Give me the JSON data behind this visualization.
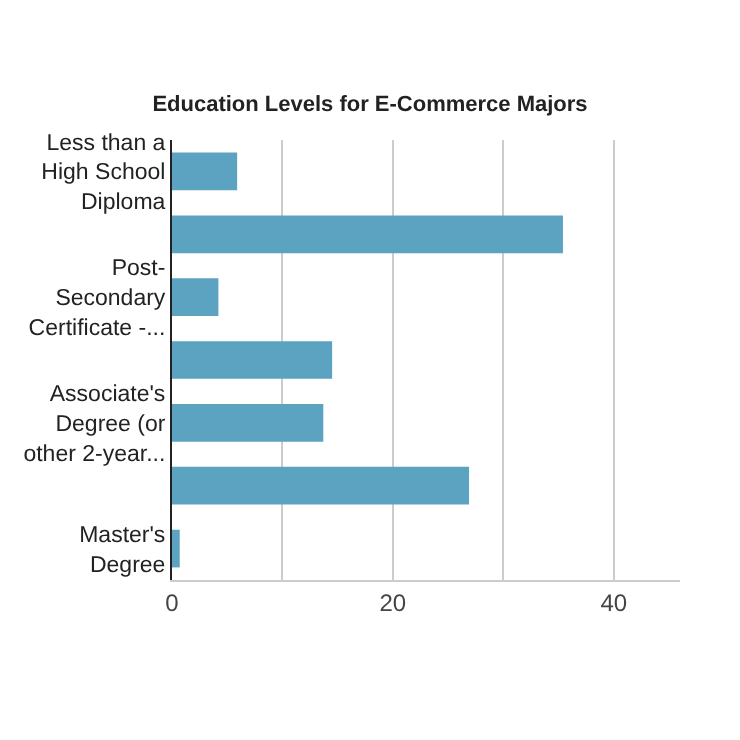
{
  "chart_data": {
    "type": "bar",
    "orientation": "horizontal",
    "title": "Education Levels for E-Commerce Majors",
    "categories": [
      "Less than a\nHigh School\nDiploma",
      null,
      "Post-\nSecondary\nCertificate -...",
      null,
      "Associate's\nDegree (or\nother 2-year...",
      null,
      "Master's\nDegree"
    ],
    "values": [
      5.9,
      35.4,
      4.2,
      14.5,
      13.7,
      26.9,
      0.7
    ],
    "color": "#5ba3c0",
    "xlim": [
      0,
      46
    ],
    "xticks": [
      0,
      {
        "value": 10,
        "label": null
      },
      20,
      {
        "value": 30,
        "label": null
      },
      40
    ],
    "grid": "x"
  }
}
